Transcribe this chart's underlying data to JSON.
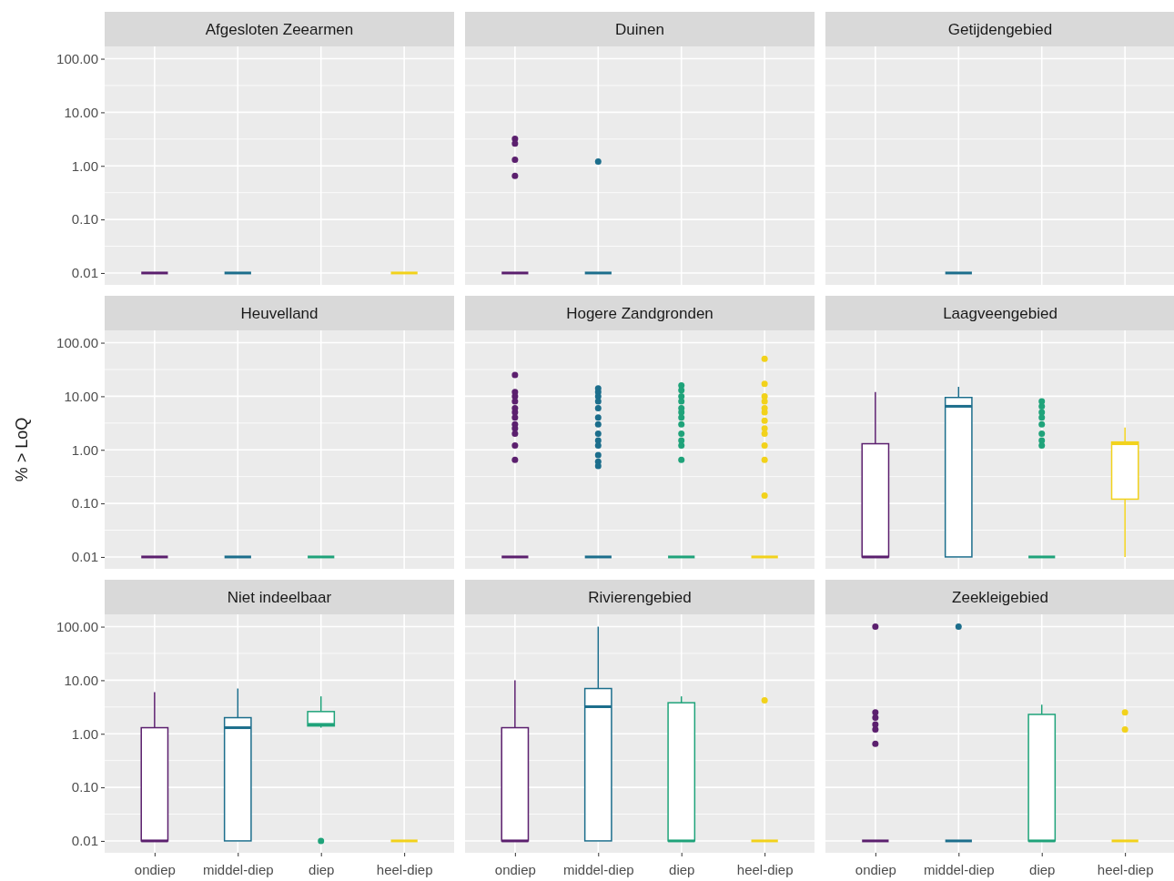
{
  "chart_data": [
    {
      "type": "box",
      "title": "Afgesloten Zeearmen",
      "categories": [
        "ondiep",
        "middel-diep",
        "diep",
        "heel-diep"
      ],
      "colors": [
        "#5b1f6e",
        "#1c6e8c",
        null,
        "#f2d21b"
      ],
      "ylim": [
        0.006,
        170
      ],
      "log": true,
      "grid": true,
      "tick_labels": "y",
      "yticks": [
        {
          "value": 0.01,
          "label": "0.01"
        },
        {
          "value": 0.1,
          "label": "0.10"
        },
        {
          "value": 1,
          "label": "1.00"
        },
        {
          "value": 10,
          "label": "10.00"
        },
        {
          "value": 100,
          "label": "100.00"
        }
      ],
      "boxes": [
        {
          "low": 0.01,
          "q1": 0.01,
          "median": 0.01,
          "q3": 0.01,
          "high": 0.01
        },
        {
          "low": 0.01,
          "q1": 0.01,
          "median": 0.01,
          "q3": 0.01,
          "high": 0.01
        },
        null,
        {
          "low": 0.01,
          "q1": 0.01,
          "median": 0.01,
          "q3": 0.01,
          "high": 0.01
        }
      ]
    },
    {
      "type": "box",
      "title": "Duinen",
      "categories": [
        "ondiep",
        "middel-diep",
        "diep",
        "heel-diep"
      ],
      "colors": [
        "#5b1f6e",
        "#1c6e8c",
        null,
        null
      ],
      "ylim": [
        0.006,
        170
      ],
      "log": true,
      "grid": true,
      "tick_labels": false,
      "yticks": [
        {
          "value": 0.01,
          "label": "0.01"
        },
        {
          "value": 0.1,
          "label": "0.10"
        },
        {
          "value": 1,
          "label": "1.00"
        },
        {
          "value": 10,
          "label": "10.00"
        },
        {
          "value": 100,
          "label": "100.00"
        }
      ],
      "boxes": [
        {
          "low": 0.01,
          "q1": 0.01,
          "median": 0.01,
          "q3": 0.01,
          "high": 0.01,
          "outliers": [
            3.2,
            2.6,
            1.3,
            0.65
          ]
        },
        {
          "low": 0.01,
          "q1": 0.01,
          "median": 0.01,
          "q3": 0.01,
          "high": 0.01,
          "outliers": [
            1.2
          ]
        },
        null,
        null
      ]
    },
    {
      "type": "box",
      "title": "Getijdengebied",
      "categories": [
        "ondiep",
        "middel-diep",
        "diep",
        "heel-diep"
      ],
      "colors": [
        null,
        "#1c6e8c",
        null,
        null
      ],
      "ylim": [
        0.006,
        170
      ],
      "log": true,
      "grid": true,
      "tick_labels": false,
      "yticks": [
        {
          "value": 0.01,
          "label": "0.01"
        },
        {
          "value": 0.1,
          "label": "0.10"
        },
        {
          "value": 1,
          "label": "1.00"
        },
        {
          "value": 10,
          "label": "10.00"
        },
        {
          "value": 100,
          "label": "100.00"
        }
      ],
      "boxes": [
        null,
        {
          "low": 0.01,
          "q1": 0.01,
          "median": 0.01,
          "q3": 0.01,
          "high": 0.01
        },
        null,
        null
      ]
    },
    {
      "type": "box",
      "title": "Heuvelland",
      "ylabel": "% > LoQ",
      "categories": [
        "ondiep",
        "middel-diep",
        "diep",
        "heel-diep"
      ],
      "colors": [
        "#5b1f6e",
        "#1c6e8c",
        "#1fa37a",
        null
      ],
      "ylim": [
        0.006,
        170
      ],
      "log": true,
      "grid": true,
      "tick_labels": "y",
      "yticks": [
        {
          "value": 0.01,
          "label": "0.01"
        },
        {
          "value": 0.1,
          "label": "0.10"
        },
        {
          "value": 1,
          "label": "1.00"
        },
        {
          "value": 10,
          "label": "10.00"
        },
        {
          "value": 100,
          "label": "100.00"
        }
      ],
      "boxes": [
        {
          "low": 0.01,
          "q1": 0.01,
          "median": 0.01,
          "q3": 0.01,
          "high": 0.01
        },
        {
          "low": 0.01,
          "q1": 0.01,
          "median": 0.01,
          "q3": 0.01,
          "high": 0.01
        },
        {
          "low": 0.01,
          "q1": 0.01,
          "median": 0.01,
          "q3": 0.01,
          "high": 0.01
        },
        null
      ]
    },
    {
      "type": "box",
      "title": "Hogere Zandgronden",
      "categories": [
        "ondiep",
        "middel-diep",
        "diep",
        "heel-diep"
      ],
      "colors": [
        "#5b1f6e",
        "#1c6e8c",
        "#1fa37a",
        "#f2d21b"
      ],
      "ylim": [
        0.006,
        170
      ],
      "log": true,
      "grid": true,
      "tick_labels": false,
      "yticks": [
        {
          "value": 0.01,
          "label": "0.01"
        },
        {
          "value": 0.1,
          "label": "0.10"
        },
        {
          "value": 1,
          "label": "1.00"
        },
        {
          "value": 10,
          "label": "10.00"
        },
        {
          "value": 100,
          "label": "100.00"
        }
      ],
      "boxes": [
        {
          "low": 0.01,
          "q1": 0.01,
          "median": 0.01,
          "q3": 0.01,
          "high": 0.01,
          "outliers": [
            25,
            12,
            10,
            8,
            6,
            5,
            4,
            3,
            2.5,
            2,
            1.2,
            0.65
          ]
        },
        {
          "low": 0.01,
          "q1": 0.01,
          "median": 0.01,
          "q3": 0.01,
          "high": 0.01,
          "outliers": [
            14,
            12,
            10,
            8,
            6,
            4,
            3,
            2,
            1.5,
            1.2,
            0.8,
            0.6,
            0.5
          ]
        },
        {
          "low": 0.01,
          "q1": 0.01,
          "median": 0.01,
          "q3": 0.01,
          "high": 0.01,
          "outliers": [
            16,
            13,
            10,
            8,
            6,
            5,
            4,
            3,
            2,
            1.5,
            1.2,
            0.65
          ]
        },
        {
          "low": 0.01,
          "q1": 0.01,
          "median": 0.01,
          "q3": 0.01,
          "high": 0.01,
          "outliers": [
            50,
            17,
            10,
            8,
            6,
            5,
            3.5,
            2.5,
            2,
            1.2,
            0.65,
            0.14
          ]
        }
      ]
    },
    {
      "type": "box",
      "title": "Laagveengebied",
      "categories": [
        "ondiep",
        "middel-diep",
        "diep",
        "heel-diep"
      ],
      "colors": [
        "#5b1f6e",
        "#1c6e8c",
        "#1fa37a",
        "#f2d21b"
      ],
      "ylim": [
        0.006,
        170
      ],
      "log": true,
      "grid": true,
      "tick_labels": false,
      "yticks": [
        {
          "value": 0.01,
          "label": "0.01"
        },
        {
          "value": 0.1,
          "label": "0.10"
        },
        {
          "value": 1,
          "label": "1.00"
        },
        {
          "value": 10,
          "label": "10.00"
        },
        {
          "value": 100,
          "label": "100.00"
        }
      ],
      "boxes": [
        {
          "low": 0.01,
          "q1": 0.01,
          "median": 0.01,
          "q3": 1.3,
          "high": 12
        },
        {
          "low": 0.01,
          "q1": 0.01,
          "median": 6.5,
          "q3": 9.5,
          "high": 15
        },
        {
          "low": 0.01,
          "q1": 0.01,
          "median": 0.01,
          "q3": 0.01,
          "high": 0.01,
          "outliers": [
            8,
            6.5,
            5,
            4,
            3,
            2,
            1.5,
            1.2
          ]
        },
        {
          "low": 0.01,
          "q1": 0.12,
          "median": 1.3,
          "q3": 1.4,
          "high": 2.6
        }
      ]
    },
    {
      "type": "box",
      "title": "Niet indeelbaar",
      "categories": [
        "ondiep",
        "middel-diep",
        "diep",
        "heel-diep"
      ],
      "colors": [
        "#5b1f6e",
        "#1c6e8c",
        "#1fa37a",
        "#f2d21b"
      ],
      "ylim": [
        0.006,
        170
      ],
      "log": true,
      "grid": true,
      "yticks": [
        {
          "value": 0.01,
          "label": "0.01"
        },
        {
          "value": 0.1,
          "label": "0.10"
        },
        {
          "value": 1,
          "label": "1.00"
        },
        {
          "value": 10,
          "label": "10.00"
        },
        {
          "value": 100,
          "label": "100.00"
        }
      ],
      "boxes": [
        {
          "low": 0.01,
          "q1": 0.01,
          "median": 0.01,
          "q3": 1.3,
          "high": 6
        },
        {
          "low": 0.01,
          "q1": 0.01,
          "median": 1.3,
          "q3": 2,
          "high": 7
        },
        {
          "low": 1.3,
          "q1": 1.4,
          "median": 1.5,
          "q3": 2.6,
          "high": 5,
          "outliers": [
            0.01
          ]
        },
        {
          "low": 0.01,
          "q1": 0.01,
          "median": 0.01,
          "q3": 0.01,
          "high": 0.01
        }
      ]
    },
    {
      "type": "box",
      "title": "Rivierengebied",
      "categories": [
        "ondiep",
        "middel-diep",
        "diep",
        "heel-diep"
      ],
      "colors": [
        "#5b1f6e",
        "#1c6e8c",
        "#1fa37a",
        "#f2d21b"
      ],
      "ylim": [
        0.006,
        170
      ],
      "log": true,
      "grid": true,
      "tick_labels": "x",
      "yticks": [
        {
          "value": 0.01,
          "label": "0.01"
        },
        {
          "value": 0.1,
          "label": "0.10"
        },
        {
          "value": 1,
          "label": "1.00"
        },
        {
          "value": 10,
          "label": "10.00"
        },
        {
          "value": 100,
          "label": "100.00"
        }
      ],
      "boxes": [
        {
          "low": 0.01,
          "q1": 0.01,
          "median": 0.01,
          "q3": 1.3,
          "high": 10
        },
        {
          "low": 0.01,
          "q1": 0.01,
          "median": 3.2,
          "q3": 7,
          "high": 100
        },
        {
          "low": 0.01,
          "q1": 0.01,
          "median": 0.01,
          "q3": 3.8,
          "high": 5
        },
        {
          "low": 0.01,
          "q1": 0.01,
          "median": 0.01,
          "q3": 0.01,
          "high": 0.01,
          "outliers": [
            4.2
          ]
        }
      ]
    },
    {
      "type": "box",
      "title": "Zeekleigebied",
      "categories": [
        "ondiep",
        "middel-diep",
        "diep",
        "heel-diep"
      ],
      "colors": [
        "#5b1f6e",
        "#1c6e8c",
        "#1fa37a",
        "#f2d21b"
      ],
      "ylim": [
        0.006,
        170
      ],
      "log": true,
      "grid": true,
      "tick_labels": "x",
      "yticks": [
        {
          "value": 0.01,
          "label": "0.01"
        },
        {
          "value": 0.1,
          "label": "0.10"
        },
        {
          "value": 1,
          "label": "1.00"
        },
        {
          "value": 10,
          "label": "10.00"
        },
        {
          "value": 100,
          "label": "100.00"
        }
      ],
      "boxes": [
        {
          "low": 0.01,
          "q1": 0.01,
          "median": 0.01,
          "q3": 0.01,
          "high": 0.01,
          "outliers": [
            100,
            2.5,
            2,
            1.5,
            1.2,
            0.65
          ]
        },
        {
          "low": 0.01,
          "q1": 0.01,
          "median": 0.01,
          "q3": 0.01,
          "high": 0.01,
          "outliers": [
            100
          ]
        },
        {
          "low": 0.01,
          "q1": 0.01,
          "median": 0.01,
          "q3": 2.3,
          "high": 3.5
        },
        {
          "low": 0.01,
          "q1": 0.01,
          "median": 0.01,
          "q3": 0.01,
          "high": 0.01,
          "outliers": [
            2.5,
            1.2
          ]
        }
      ]
    }
  ]
}
